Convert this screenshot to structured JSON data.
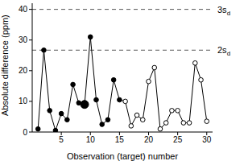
{
  "chart_data": {
    "type": "line",
    "x_label": "Observation (target) number",
    "y_label": "Absolute difference (ppm)",
    "x": [
      1,
      2,
      3,
      4,
      5,
      6,
      7,
      8,
      9,
      10,
      11,
      12,
      13,
      14,
      15,
      16,
      17,
      18,
      19,
      20,
      21,
      22,
      23,
      24,
      25,
      26,
      27,
      28,
      29,
      30
    ],
    "series": [
      {
        "color": "#000000",
        "marker": "circle",
        "line_style": "solid",
        "colors": [
          "#000000",
          "#000000",
          "#000000",
          "#000000",
          "#000000",
          "#000000",
          "#000000",
          "#000000",
          "#000000",
          "#000000",
          "#000000",
          "#000000",
          "#000000",
          "#000000",
          "#000000",
          "#ffffff",
          "#ffffff",
          "#ffffff",
          "#ffffff",
          "#ffffff",
          "#ffffff",
          "#ffffff",
          "#ffffff",
          "#ffffff",
          "#ffffff",
          "#ffffff",
          "#ffffff",
          "#ffffff",
          "#ffffff",
          "#ffffff"
        ],
        "values": [
          1,
          26.7,
          7,
          0.5,
          6,
          4,
          15.5,
          9.5,
          9,
          31,
          10.5,
          2.5,
          4,
          17,
          10.5,
          10,
          2,
          5.5,
          4,
          16.5,
          21,
          1,
          3,
          7,
          7,
          3,
          3,
          22.5,
          17,
          3.5
        ]
      },
      {
        "color": "#000000",
        "type": "scatter",
        "marker": "large",
        "values": [
          null,
          null,
          null,
          null,
          null,
          null,
          null,
          null,
          9,
          null,
          null,
          null,
          null,
          null,
          null,
          null,
          null,
          null,
          null,
          null,
          null,
          null,
          null,
          null,
          null,
          null,
          null,
          null,
          null,
          null
        ]
      }
    ],
    "reference_lines": [
      {
        "value": 40,
        "label": "3s",
        "label_sub": "d",
        "line_style": "dashed"
      },
      {
        "value": 26.7,
        "label": "2s",
        "label_sub": "d",
        "line_style": "dashed"
      }
    ],
    "xlim": [
      0,
      31
    ],
    "xticks": [
      5,
      10,
      15,
      20,
      25,
      30
    ],
    "ylim": [
      0,
      42
    ],
    "yticks": [
      0,
      10,
      20,
      30,
      40
    ],
    "grid": false
  }
}
